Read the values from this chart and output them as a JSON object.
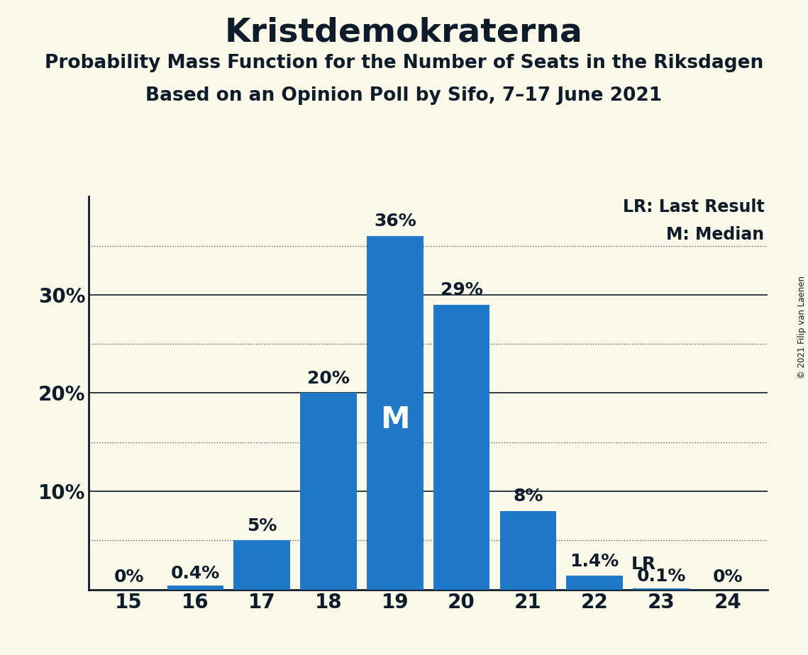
{
  "title": "Kristdemokraterna",
  "subtitle": "Probability Mass Function for the Number of Seats in the Riksdagen",
  "subsubtitle": "Based on an Opinion Poll by Sifo, 7–17 June 2021",
  "copyright": "© 2021 Filip van Laenen",
  "categories": [
    15,
    16,
    17,
    18,
    19,
    20,
    21,
    22,
    23,
    24
  ],
  "values": [
    0.0,
    0.4,
    5.0,
    20.0,
    36.0,
    29.0,
    8.0,
    1.4,
    0.1,
    0.0
  ],
  "bar_labels": [
    "0%",
    "0.4%",
    "5%",
    "20%",
    "36%",
    "29%",
    "8%",
    "1.4%",
    "0.1%",
    "0%"
  ],
  "bar_color": "#2078c8",
  "background_color": "#faf8e8",
  "median_bar": 19,
  "lr_bar": 22,
  "legend_lr": "LR: Last Result",
  "legend_m": "M: Median",
  "yticks": [
    0,
    10,
    20,
    30
  ],
  "ytick_labels": [
    "",
    "10%",
    "20%",
    "30%"
  ],
  "dotted_lines": [
    5,
    15,
    25,
    35
  ],
  "solid_lines": [
    10,
    20,
    30
  ],
  "ylim": [
    0,
    40
  ],
  "title_fontsize": 34,
  "subtitle_fontsize": 19,
  "subsubtitle_fontsize": 19,
  "bar_label_fontsize": 18,
  "axis_tick_fontsize": 20,
  "legend_fontsize": 17,
  "text_color": "#0d1b2a"
}
